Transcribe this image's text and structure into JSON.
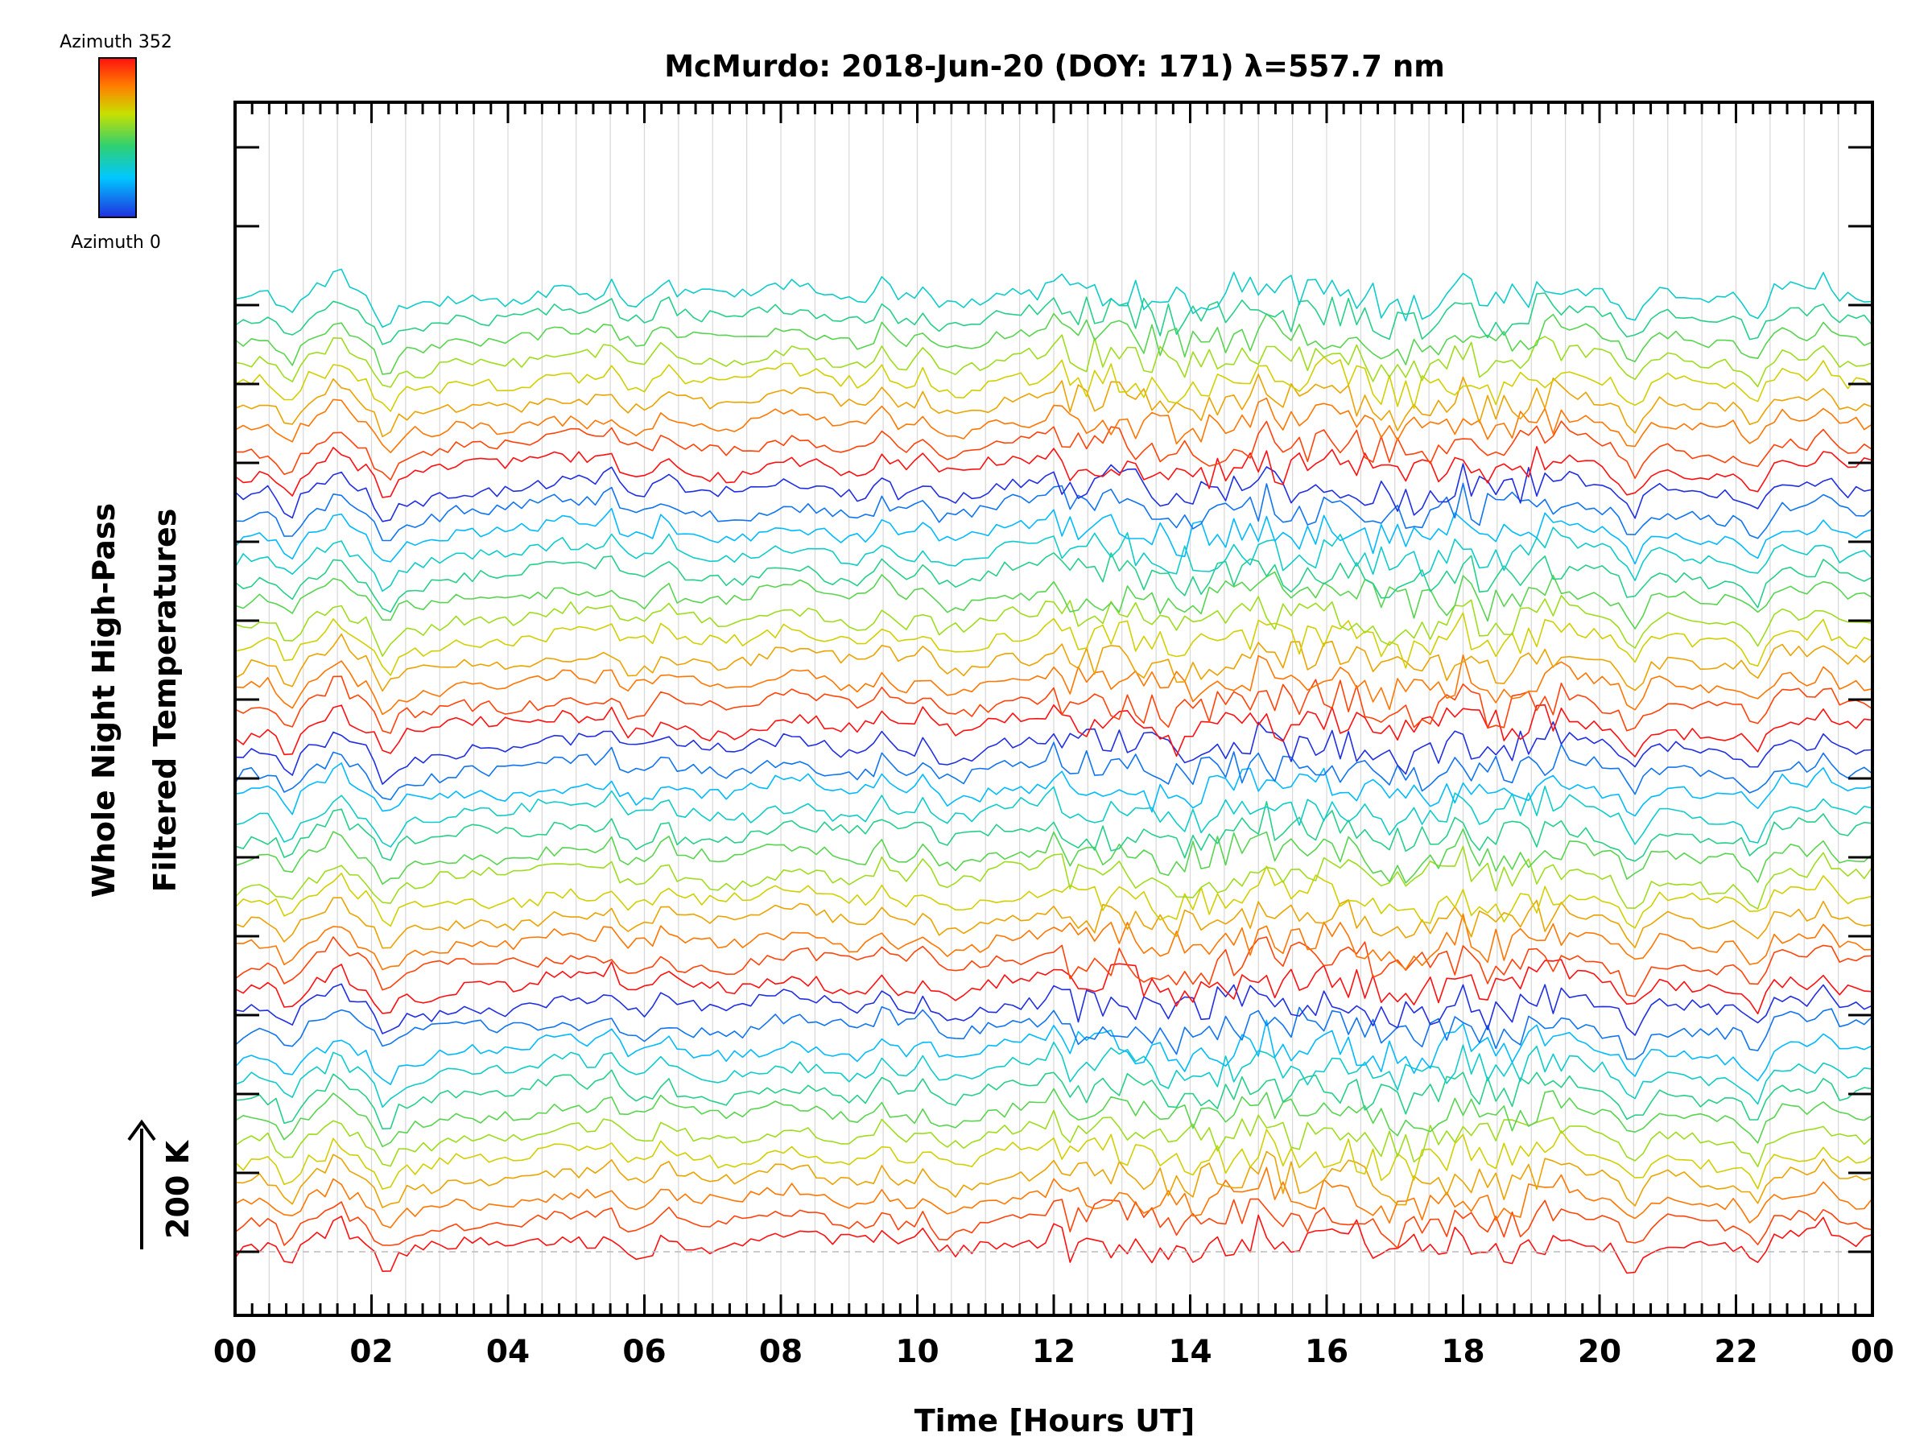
{
  "chart_data": {
    "type": "line",
    "title": "McMurdo: 2018-Jun-20 (DOY: 171) λ=557.7 nm",
    "xlabel": "Time [Hours UT]",
    "ylabel_line1": "Whole Night High-Pass",
    "ylabel_line2": "Filtered Temperatures",
    "scale_label": "200 K",
    "colorbar": {
      "top_label": "Azimuth 352",
      "bottom_label": "Azimuth 0",
      "min": 0,
      "max": 352
    },
    "x_ticks": [
      "00",
      "02",
      "04",
      "06",
      "08",
      "10",
      "12",
      "14",
      "16",
      "18",
      "20",
      "22",
      "00"
    ],
    "xlim": [
      0,
      24
    ],
    "n_traces": 45,
    "offset_per_trace_K": 8.5,
    "y_major_tick_count": 15,
    "common_features_hours": {
      "dips": [
        0.8,
        2.2,
        20.5,
        22.3
      ],
      "peaks": [
        1.5,
        5.5,
        6.3,
        9.5,
        10.1,
        12.0,
        15.1,
        18.0,
        23.3
      ]
    },
    "grid": true
  },
  "colors": {
    "frame": "#000000",
    "grid": "#d8d8d8",
    "colormap": [
      "#2030e0",
      "#00c8ff",
      "#30d070",
      "#c8e000",
      "#ff8000",
      "#ff1010"
    ]
  }
}
